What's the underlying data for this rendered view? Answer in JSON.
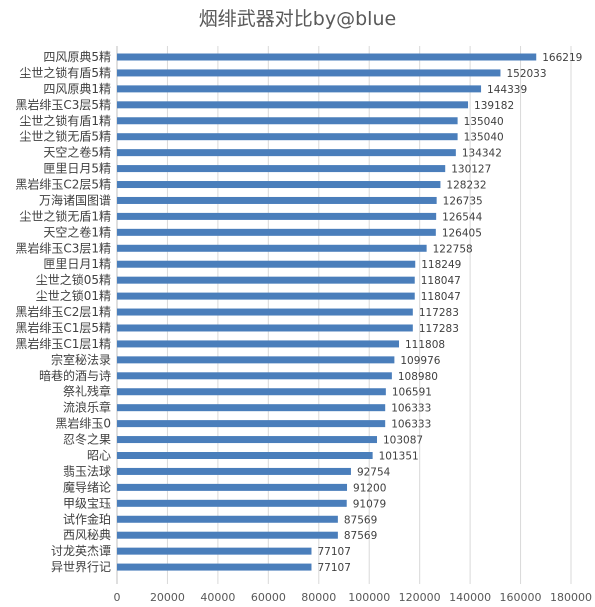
{
  "chart_data": {
    "type": "bar",
    "orientation": "horizontal",
    "title": "烟绯武器对比by@blue",
    "xlabel": "",
    "ylabel": "",
    "xlim": [
      0,
      180000
    ],
    "x_ticks": [
      0,
      20000,
      40000,
      60000,
      80000,
      100000,
      120000,
      140000,
      160000,
      180000
    ],
    "grid": true,
    "legend": "none",
    "bar_color": "#4a7ebb",
    "categories": [
      "四风原典5精",
      "尘世之锁有盾5精",
      "四风原典1精",
      "黑岩绯玉C3层5精",
      "尘世之锁有盾1精",
      "尘世之锁无盾5精",
      "天空之卷5精",
      "匣里日月5精",
      "黑岩绯玉C2层5精",
      "万海诸国图谱",
      "尘世之锁无盾1精",
      "天空之卷1精",
      "黑岩绯玉C3层1精",
      "匣里日月1精",
      "尘世之锁05精",
      "尘世之锁01精",
      "黑岩绯玉C2层1精",
      "黑岩绯玉C1层5精",
      "黑岩绯玉C1层1精",
      "宗室秘法录",
      "暗巷的酒与诗",
      "祭礼残章",
      "流浪乐章",
      "黑岩绯玉0",
      "忍冬之果",
      "昭心",
      "翡玉法球",
      "魔导绪论",
      "甲级宝珏",
      "试作金珀",
      "西风秘典",
      "讨龙英杰谭",
      "异世界行记"
    ],
    "values": [
      166219,
      152033,
      144339,
      139182,
      135040,
      135040,
      134342,
      130127,
      128232,
      126735,
      126544,
      126405,
      122758,
      118249,
      118047,
      118047,
      117283,
      117283,
      111808,
      109976,
      108980,
      106591,
      106333,
      106333,
      103087,
      101351,
      92754,
      91200,
      91079,
      87569,
      87569,
      77107,
      77107
    ]
  }
}
